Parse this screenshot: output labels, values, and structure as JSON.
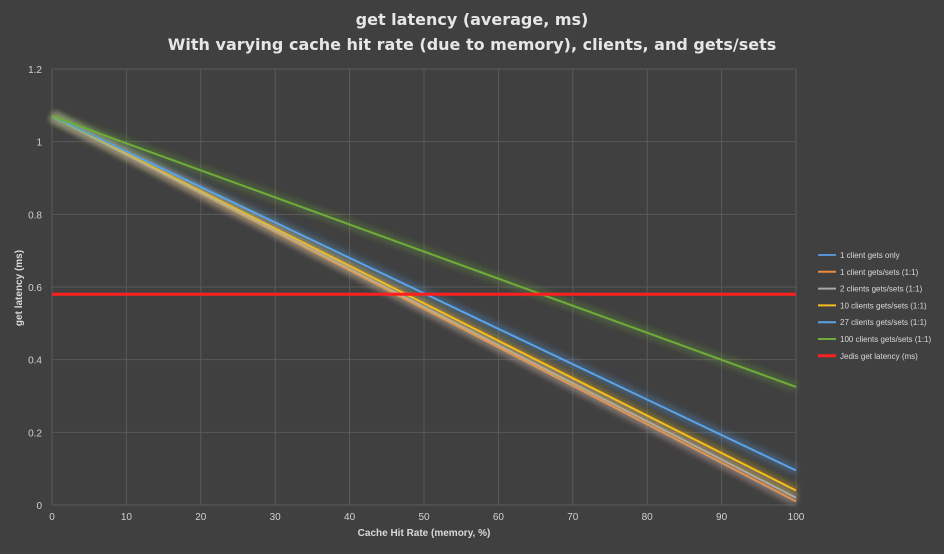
{
  "chart_data": {
    "type": "line",
    "title": "get latency (average, ms)",
    "subtitle": "With varying cache hit rate (due to memory), clients, and gets/sets",
    "xlabel": "Cache Hit Rate (memory, %)",
    "ylabel": "get latency (ms)",
    "xlim": [
      0,
      100
    ],
    "ylim": [
      0,
      1.2
    ],
    "xticks": [
      "0",
      "10",
      "20",
      "30",
      "40",
      "50",
      "60",
      "70",
      "80",
      "90",
      "100"
    ],
    "yticks": [
      "0",
      "0.2",
      "0.4",
      "0.6",
      "0.8",
      "1",
      "1.2"
    ],
    "grid": true,
    "legend_position": "right",
    "x": [
      0,
      100
    ],
    "series": [
      {
        "name": "1 client gets only",
        "color": "#5b8fd6",
        "values": [
          1.07,
          0.01
        ]
      },
      {
        "name": "1 client gets/sets (1:1)",
        "color": "#ed8a3c",
        "values": [
          1.07,
          0.01
        ]
      },
      {
        "name": "2 clients gets/sets (1:1)",
        "color": "#a8a8a8",
        "values": [
          1.07,
          0.02
        ]
      },
      {
        "name": "10 clients gets/sets (1:1)",
        "color": "#f5bd1e",
        "values": [
          1.07,
          0.04
        ]
      },
      {
        "name": "27 clients gets/sets (1:1)",
        "color": "#5ba3e8",
        "values": [
          1.07,
          0.095
        ]
      },
      {
        "name": "100 clients gets/sets (1:1)",
        "color": "#6fad3a",
        "values": [
          1.07,
          0.325
        ]
      },
      {
        "name": "Jedis get latency (ms)",
        "color": "#ff1f1f",
        "values": [
          0.58,
          0.58
        ]
      }
    ]
  }
}
